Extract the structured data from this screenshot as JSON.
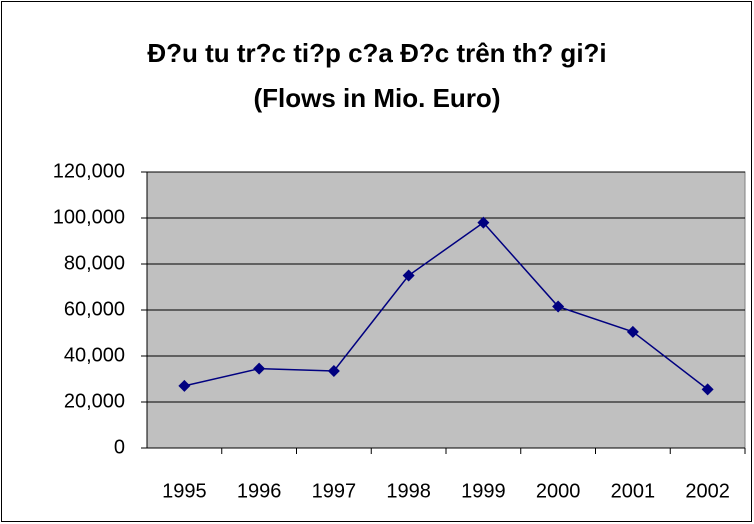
{
  "chart_data": {
    "type": "line",
    "title": [
      "Đ?u tu tr?c ti?p c?a Đ?c trên th? gi?i",
      "(Flows in Mio. Euro)"
    ],
    "categories": [
      "1995",
      "1996",
      "1997",
      "1998",
      "1999",
      "2000",
      "2001",
      "2002"
    ],
    "series": [
      {
        "name": "Flows",
        "color": "#000080",
        "values": [
          27000,
          34500,
          33500,
          75000,
          98000,
          61500,
          50500,
          25500
        ]
      }
    ],
    "ylim": [
      0,
      120000
    ],
    "yticks": [
      0,
      {
        "value": 20000,
        "label": "20,000"
      },
      {
        "value": 40000,
        "label": "40,000"
      },
      {
        "value": 60000,
        "label": "60,000"
      },
      {
        "value": 80000,
        "label": "80,000"
      },
      {
        "value": 100000,
        "label": "100,000"
      },
      {
        "value": 120000,
        "label": "120,000"
      }
    ],
    "grid": true,
    "plot_background": "#c0c0c0"
  }
}
